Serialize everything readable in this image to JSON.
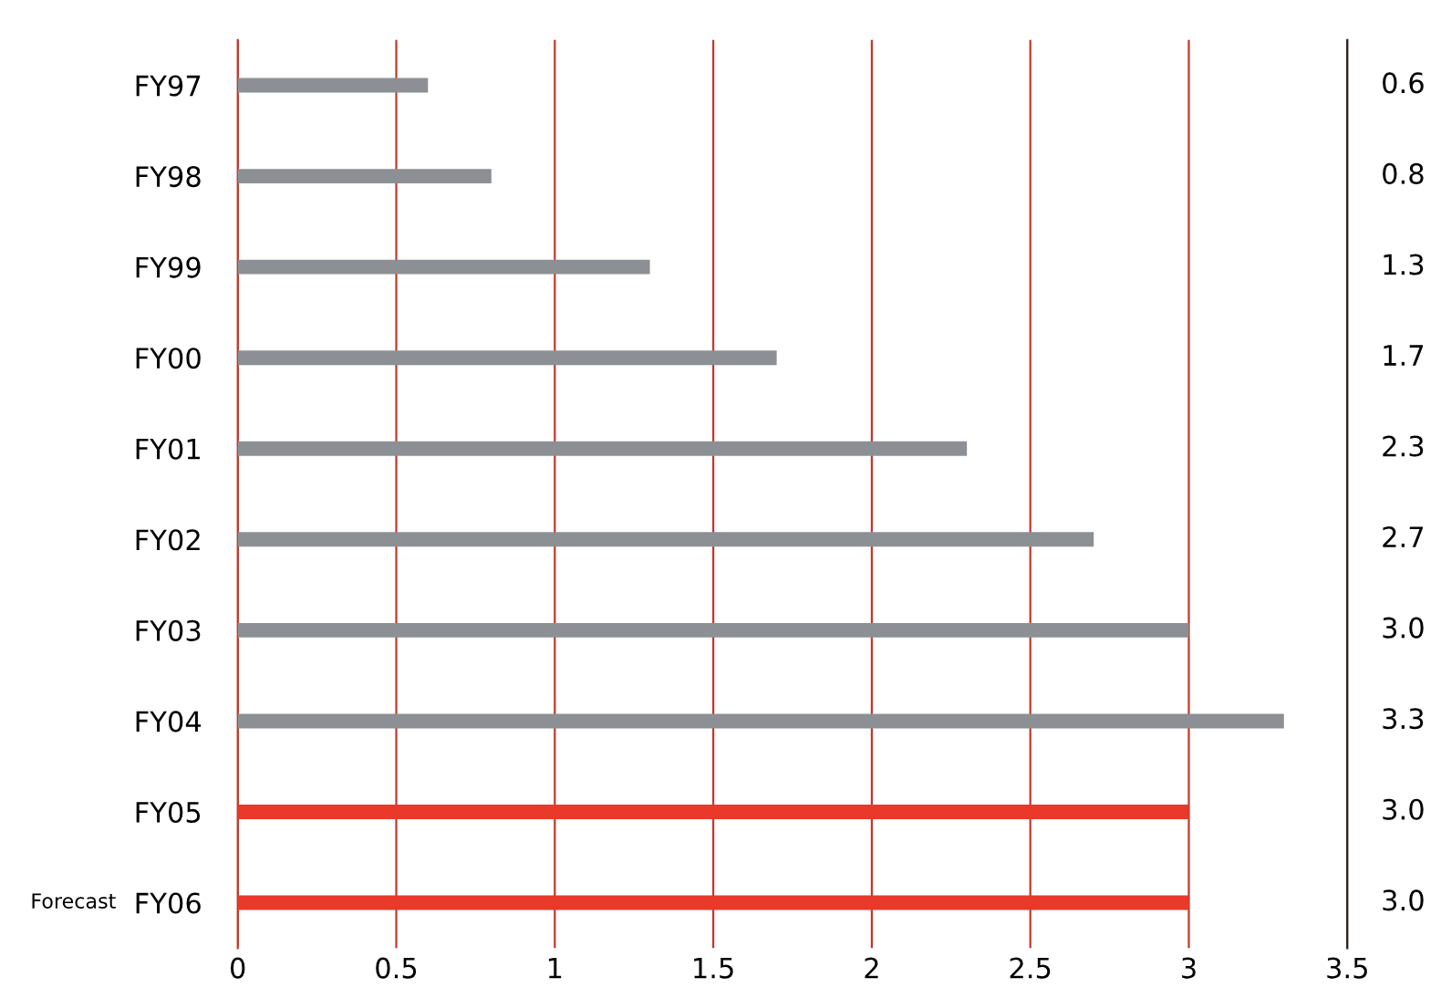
{
  "chart_data": {
    "type": "bar",
    "orientation": "horizontal",
    "categories": [
      "FY97",
      "FY98",
      "FY99",
      "FY00",
      "FY01",
      "FY02",
      "FY03",
      "FY04",
      "FY05",
      "FY06"
    ],
    "values": [
      0.6,
      0.8,
      1.3,
      1.7,
      2.3,
      2.7,
      3.0,
      3.3,
      3.0,
      3.0
    ],
    "colors": [
      "#8c9094",
      "#8c9094",
      "#8c9094",
      "#8c9094",
      "#8c9094",
      "#8c9094",
      "#8c9094",
      "#8c9094",
      "#e8392a",
      "#e8392a"
    ],
    "value_labels": [
      "0.6",
      "0.8",
      "1.3",
      "1.7",
      "2.3",
      "2.7",
      "3.0",
      "3.3",
      "3.0",
      "3.0"
    ],
    "xlim": [
      0,
      3.5
    ],
    "xticks": [
      0,
      0.5,
      1,
      1.5,
      2,
      2.5,
      3,
      3.5
    ],
    "grid": "x",
    "annotations": [
      "Forecast"
    ]
  }
}
